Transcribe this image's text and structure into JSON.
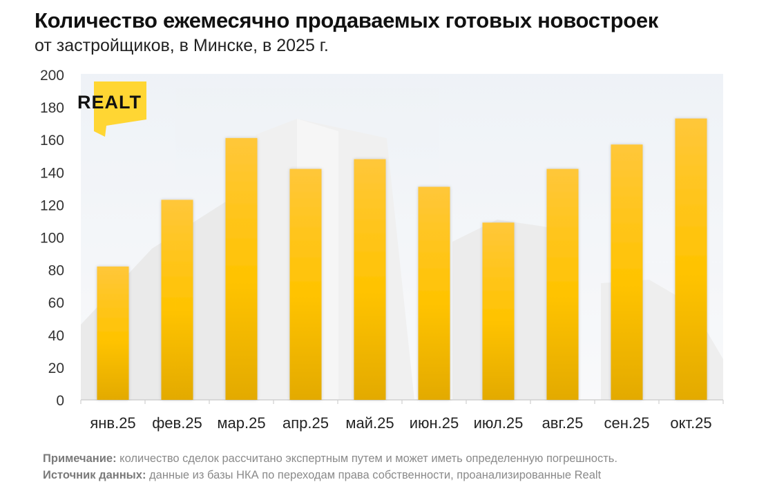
{
  "title": "Количество ежемесячно продаваемых готовых новостроек",
  "subtitle": "от застройщиков, в Минске, в 2025 г.",
  "logo": {
    "text": "REALT",
    "color": "#FFD633"
  },
  "notes": {
    "note_label": "Примечание:",
    "note_text": " количество сделок рассчитано экспертным путем и может иметь определенную погрешность.",
    "source_label": "Источник данных:",
    "source_text": " данные из базы НКА по переходам права собственности, проанализированные Realt"
  },
  "colors": {
    "bar_top": "#FFC73A",
    "bar_mid": "#FFC300",
    "bar_bottom": "#E6AE00",
    "axis": "#cfcfcf"
  },
  "chart_data": {
    "type": "bar",
    "categories": [
      "янв.25",
      "фев.25",
      "мар.25",
      "апр.25",
      "май.25",
      "июн.25",
      "июл.25",
      "авг.25",
      "сен.25",
      "окт.25"
    ],
    "values": [
      82,
      123,
      161,
      142,
      148,
      131,
      109,
      142,
      157,
      173
    ],
    "ylim": [
      0,
      200
    ],
    "yticks": [
      0,
      20,
      40,
      60,
      80,
      100,
      120,
      140,
      160,
      180,
      200
    ],
    "ylabel": "",
    "xlabel": "",
    "grid": false
  }
}
